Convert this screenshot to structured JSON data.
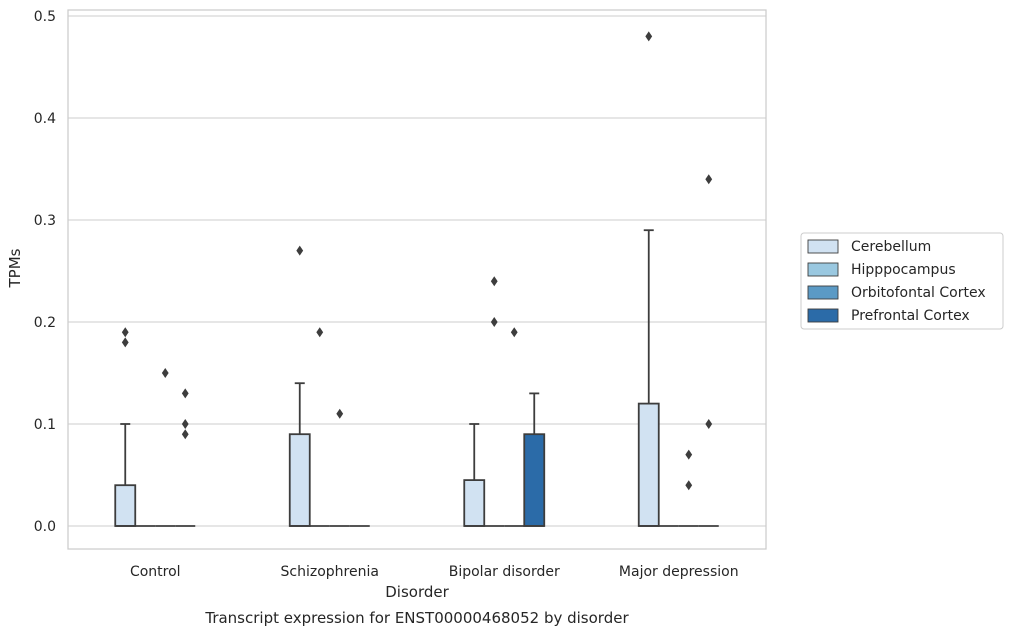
{
  "chart_data": {
    "type": "box",
    "title": "Transcript expression for ENST00000468052 by disorder",
    "xlabel": "Disorder",
    "ylabel": "TPMs",
    "ylim": [
      -0.023,
      0.505
    ],
    "yticks": [
      0.0,
      0.1,
      0.2,
      0.3,
      0.4,
      0.5
    ],
    "ytick_labels": [
      "0.0",
      "0.1",
      "0.2",
      "0.3",
      "0.4",
      "0.5"
    ],
    "grid": "horizontal",
    "legend_position": "right",
    "categories": [
      "Control",
      "Schizophrenia",
      "Bipolar disorder",
      "Major depression"
    ],
    "series": [
      {
        "name": "Cerebellum",
        "color": "#d1e2f2",
        "boxes": [
          {
            "q1": 0,
            "median": 0,
            "q3": 0.04,
            "whisker_low": 0,
            "whisker_high": 0.1,
            "outliers": [
              0.18,
              0.19
            ]
          },
          {
            "q1": 0,
            "median": 0,
            "q3": 0.09,
            "whisker_low": 0,
            "whisker_high": 0.14,
            "outliers": [
              0.27
            ]
          },
          {
            "q1": 0,
            "median": 0,
            "q3": 0.045,
            "whisker_low": 0,
            "whisker_high": 0.1,
            "outliers": []
          },
          {
            "q1": 0,
            "median": 0,
            "q3": 0.12,
            "whisker_low": 0,
            "whisker_high": 0.29,
            "outliers": [
              0.48
            ]
          }
        ]
      },
      {
        "name": "Hipppocampus",
        "color": "#9ac8e0",
        "boxes": [
          {
            "q1": 0,
            "median": 0,
            "q3": 0,
            "whisker_low": 0,
            "whisker_high": 0,
            "outliers": []
          },
          {
            "q1": 0,
            "median": 0,
            "q3": 0,
            "whisker_low": 0,
            "whisker_high": 0,
            "outliers": [
              0.19
            ]
          },
          {
            "q1": 0,
            "median": 0,
            "q3": 0,
            "whisker_low": 0,
            "whisker_high": 0,
            "outliers": [
              0.2,
              0.24
            ]
          },
          {
            "q1": 0,
            "median": 0,
            "q3": 0,
            "whisker_low": 0,
            "whisker_high": 0,
            "outliers": []
          }
        ]
      },
      {
        "name": "Orbitofontal Cortex",
        "color": "#5b9ac5",
        "boxes": [
          {
            "q1": 0,
            "median": 0,
            "q3": 0,
            "whisker_low": 0,
            "whisker_high": 0,
            "outliers": [
              0.15
            ]
          },
          {
            "q1": 0,
            "median": 0,
            "q3": 0,
            "whisker_low": 0,
            "whisker_high": 0,
            "outliers": [
              0.11
            ]
          },
          {
            "q1": 0,
            "median": 0,
            "q3": 0,
            "whisker_low": 0,
            "whisker_high": 0,
            "outliers": [
              0.19
            ]
          },
          {
            "q1": 0,
            "median": 0,
            "q3": 0,
            "whisker_low": 0,
            "whisker_high": 0,
            "outliers": [
              0.04,
              0.07
            ]
          }
        ]
      },
      {
        "name": "Prefrontal Cortex",
        "color": "#2b6ba8",
        "boxes": [
          {
            "q1": 0,
            "median": 0,
            "q3": 0,
            "whisker_low": 0,
            "whisker_high": 0,
            "outliers": [
              0.09,
              0.1,
              0.13
            ]
          },
          {
            "q1": 0,
            "median": 0,
            "q3": 0,
            "whisker_low": 0,
            "whisker_high": 0,
            "outliers": []
          },
          {
            "q1": 0,
            "median": 0,
            "q3": 0.09,
            "whisker_low": 0,
            "whisker_high": 0.13,
            "outliers": []
          },
          {
            "q1": 0,
            "median": 0,
            "q3": 0,
            "whisker_low": 0,
            "whisker_high": 0,
            "outliers": [
              0.1,
              0.34
            ]
          }
        ]
      }
    ]
  }
}
